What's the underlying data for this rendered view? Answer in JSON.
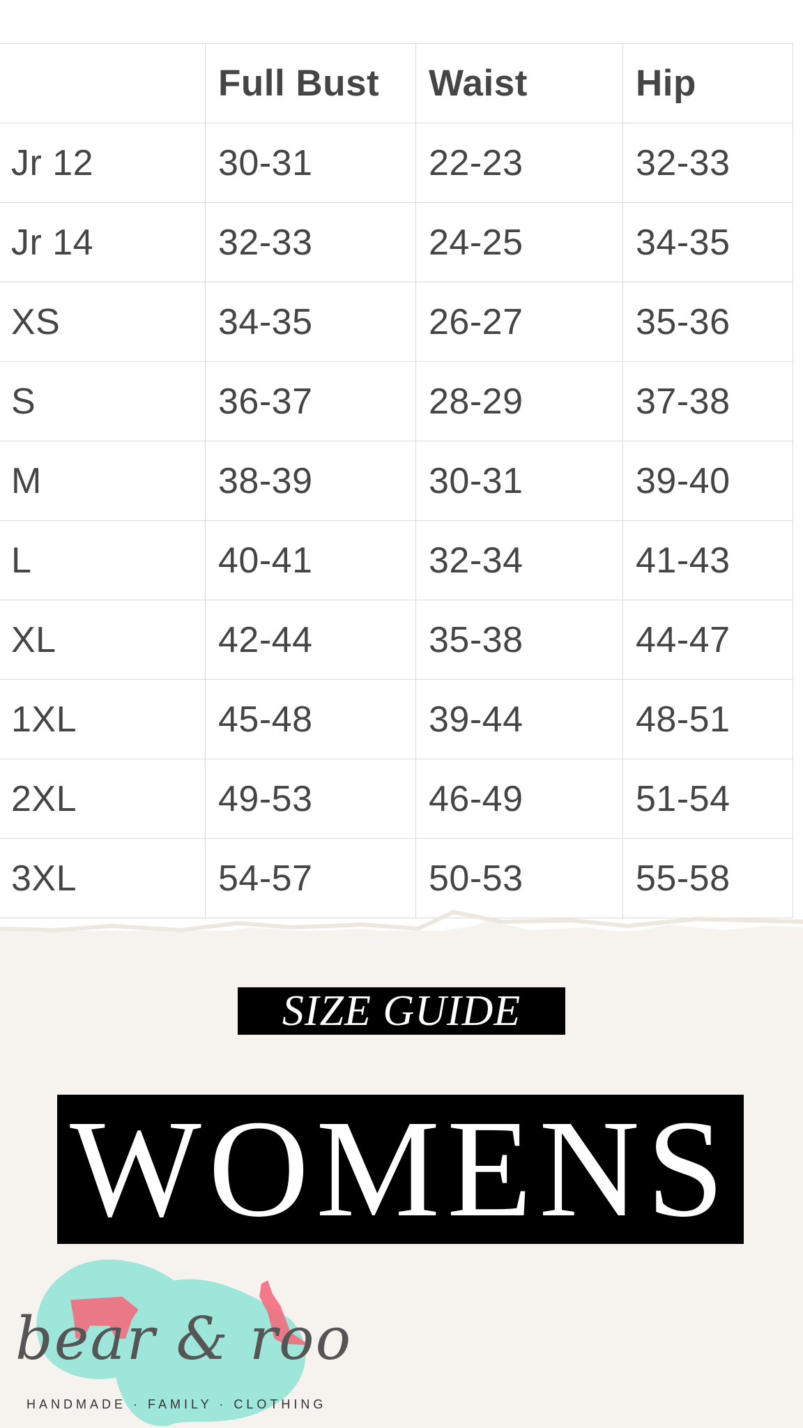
{
  "table": {
    "headers": [
      "",
      "Full Bust",
      "Waist",
      "Hip"
    ],
    "rows": [
      [
        "Jr 12",
        "30-31",
        "22-23",
        "32-33"
      ],
      [
        "Jr 14",
        "32-33",
        "24-25",
        "34-35"
      ],
      [
        "XS",
        "34-35",
        "26-27",
        "35-36"
      ],
      [
        "S",
        "36-37",
        "28-29",
        "37-38"
      ],
      [
        "M",
        "38-39",
        "30-31",
        "39-40"
      ],
      [
        "L",
        "40-41",
        "32-34",
        "41-43"
      ],
      [
        "XL",
        "42-44",
        "35-38",
        "44-47"
      ],
      [
        "1XL",
        "45-48",
        "39-44",
        "48-51"
      ],
      [
        "2XL",
        "49-53",
        "46-49",
        "51-54"
      ],
      [
        "3XL",
        "54-57",
        "50-53",
        "55-58"
      ]
    ]
  },
  "banner": {
    "subtitle": "SIZE GUIDE",
    "title": "WOMENS"
  },
  "logo": {
    "name": "bear & roo",
    "tagline": "HANDMADE · FAMILY · CLOTHING"
  },
  "colors": {
    "background": "#f6f3ee",
    "text": "#454545",
    "watercolor": "#8fe3d6",
    "animals": "#f26d7d"
  }
}
